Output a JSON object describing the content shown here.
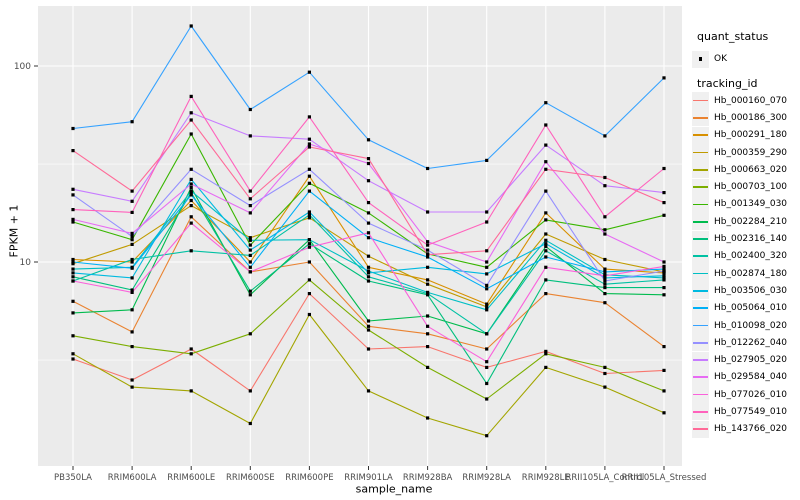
{
  "chart_data": {
    "type": "line",
    "title": "",
    "xlabel": "sample_name",
    "ylabel": "FPKM + 1",
    "yscale": "log10",
    "ylim": [
      1.25,
      200
    ],
    "yticks": [
      {
        "value": 100,
        "label": "100"
      },
      {
        "value": 10,
        "label": "10"
      }
    ],
    "minor_gridlines": [
      31.6,
      3.16
    ],
    "legend_position": "right",
    "grid": true,
    "panel_bg": "#EBEBEB",
    "grid_color": "#FFFFFF",
    "tick_color": "#333333",
    "tick_label_color": "#4D4D4D",
    "point_color": "#000000",
    "categories": [
      "PB350LA",
      "RRIM600LA",
      "RRIM600LE",
      "RRIM600SE",
      "RRIM600PE",
      "RRIM901LA",
      "RRIM928BA",
      "RRIM928LA",
      "RRIM928LE",
      "RRII105LA_Control",
      "RRII105LA_Stressed"
    ],
    "series": [
      {
        "name": "Hb_000160_070",
        "color": "#F8766D",
        "values": [
          3.2,
          2.5,
          3.6,
          2.2,
          6.9,
          3.6,
          3.7,
          2.9,
          3.5,
          2.7,
          2.8
        ]
      },
      {
        "name": "Hb_000186_300",
        "color": "#EA8331",
        "values": [
          6.3,
          4.4,
          17.0,
          8.9,
          10.0,
          4.7,
          4.3,
          3.6,
          6.9,
          6.2,
          3.7
        ]
      },
      {
        "name": "Hb_000291_180",
        "color": "#D89000",
        "values": [
          10.3,
          10.0,
          20.6,
          10.0,
          27.4,
          9.4,
          8.1,
          6.1,
          17.8,
          9.2,
          8.8
        ]
      },
      {
        "name": "Hb_000359_290",
        "color": "#C09B00",
        "values": [
          9.8,
          12.3,
          19.4,
          13.3,
          16.8,
          10.7,
          7.7,
          5.9,
          13.9,
          10.3,
          8.9
        ]
      },
      {
        "name": "Hb_000663_020",
        "color": "#A3A500",
        "values": [
          3.4,
          2.3,
          2.2,
          1.5,
          5.4,
          2.2,
          1.6,
          1.3,
          2.9,
          2.3,
          1.7
        ]
      },
      {
        "name": "Hb_000703_100",
        "color": "#7CAE00",
        "values": [
          4.2,
          3.7,
          3.4,
          4.3,
          8.1,
          4.5,
          2.9,
          2.0,
          3.4,
          2.9,
          2.2
        ]
      },
      {
        "name": "Hb_001349_030",
        "color": "#39B600",
        "values": [
          16.0,
          13.0,
          45.0,
          12.2,
          25.2,
          17.8,
          11.0,
          9.4,
          16.4,
          14.6,
          17.3
        ]
      },
      {
        "name": "Hb_002284_210",
        "color": "#00BB4E",
        "values": [
          5.5,
          5.7,
          24.0,
          6.8,
          13.0,
          5.0,
          5.3,
          4.3,
          12.0,
          6.9,
          6.8
        ]
      },
      {
        "name": "Hb_002316_140",
        "color": "#00BF7D",
        "values": [
          8.4,
          7.2,
          22.6,
          7.1,
          12.4,
          8.0,
          6.8,
          2.4,
          8.1,
          7.4,
          7.4
        ]
      },
      {
        "name": "Hb_002400_320",
        "color": "#00C1A3",
        "values": [
          8.0,
          10.3,
          11.4,
          10.8,
          17.4,
          8.4,
          6.9,
          4.3,
          11.4,
          7.7,
          8.1
        ]
      },
      {
        "name": "Hb_002874_180",
        "color": "#00BFC4",
        "values": [
          9.2,
          9.4,
          23.0,
          12.9,
          13.0,
          9.0,
          7.0,
          5.7,
          12.9,
          8.6,
          8.3
        ]
      },
      {
        "name": "Hb_003506_030",
        "color": "#00BAE0",
        "values": [
          8.8,
          8.3,
          26.4,
          11.5,
          18.0,
          8.8,
          9.4,
          8.7,
          12.4,
          8.3,
          8.5
        ]
      },
      {
        "name": "Hb_005064_010",
        "color": "#00B0F6",
        "values": [
          10.0,
          9.3,
          22.0,
          9.4,
          23.0,
          13.3,
          10.6,
          7.3,
          10.6,
          8.9,
          9.2
        ]
      },
      {
        "name": "Hb_010098_020",
        "color": "#35A2FF",
        "values": [
          48.0,
          52.0,
          160.0,
          60.0,
          93.0,
          42.0,
          30.0,
          33.0,
          65.0,
          44.0,
          87.0
        ]
      },
      {
        "name": "Hb_012262_040",
        "color": "#9590FF",
        "values": [
          22.0,
          13.5,
          29.7,
          19.4,
          29.7,
          15.8,
          11.5,
          7.6,
          23.0,
          8.0,
          9.0
        ]
      },
      {
        "name": "Hb_027905_020",
        "color": "#C77CFF",
        "values": [
          23.5,
          20.4,
          57.7,
          44.0,
          42.3,
          26.0,
          18.0,
          18.0,
          39.5,
          24.5,
          22.6
        ]
      },
      {
        "name": "Hb_029584_040",
        "color": "#E76BF3",
        "values": [
          16.5,
          14.0,
          25.0,
          17.8,
          40.0,
          31.8,
          12.7,
          10.0,
          32.5,
          13.9,
          10.0
        ]
      },
      {
        "name": "Hb_077026_010",
        "color": "#FA62DB",
        "values": [
          8.0,
          7.0,
          15.8,
          8.9,
          11.9,
          14.1,
          4.7,
          3.1,
          9.4,
          8.5,
          9.5
        ]
      },
      {
        "name": "Hb_077549_010",
        "color": "#FF62BC",
        "values": [
          18.5,
          17.9,
          70.0,
          23.0,
          55.0,
          20.1,
          12.2,
          16.0,
          50.0,
          17.0,
          30.0
        ]
      },
      {
        "name": "Hb_143766_020",
        "color": "#FF6A98",
        "values": [
          37.0,
          23.0,
          53.0,
          21.0,
          38.6,
          33.7,
          10.9,
          11.4,
          29.7,
          27.0,
          20.1
        ]
      }
    ],
    "legend": {
      "quant_status": {
        "title": "quant_status",
        "items": [
          {
            "label": "OK",
            "marker": "black-point"
          }
        ]
      },
      "tracking_id": {
        "title": "tracking_id"
      }
    }
  }
}
